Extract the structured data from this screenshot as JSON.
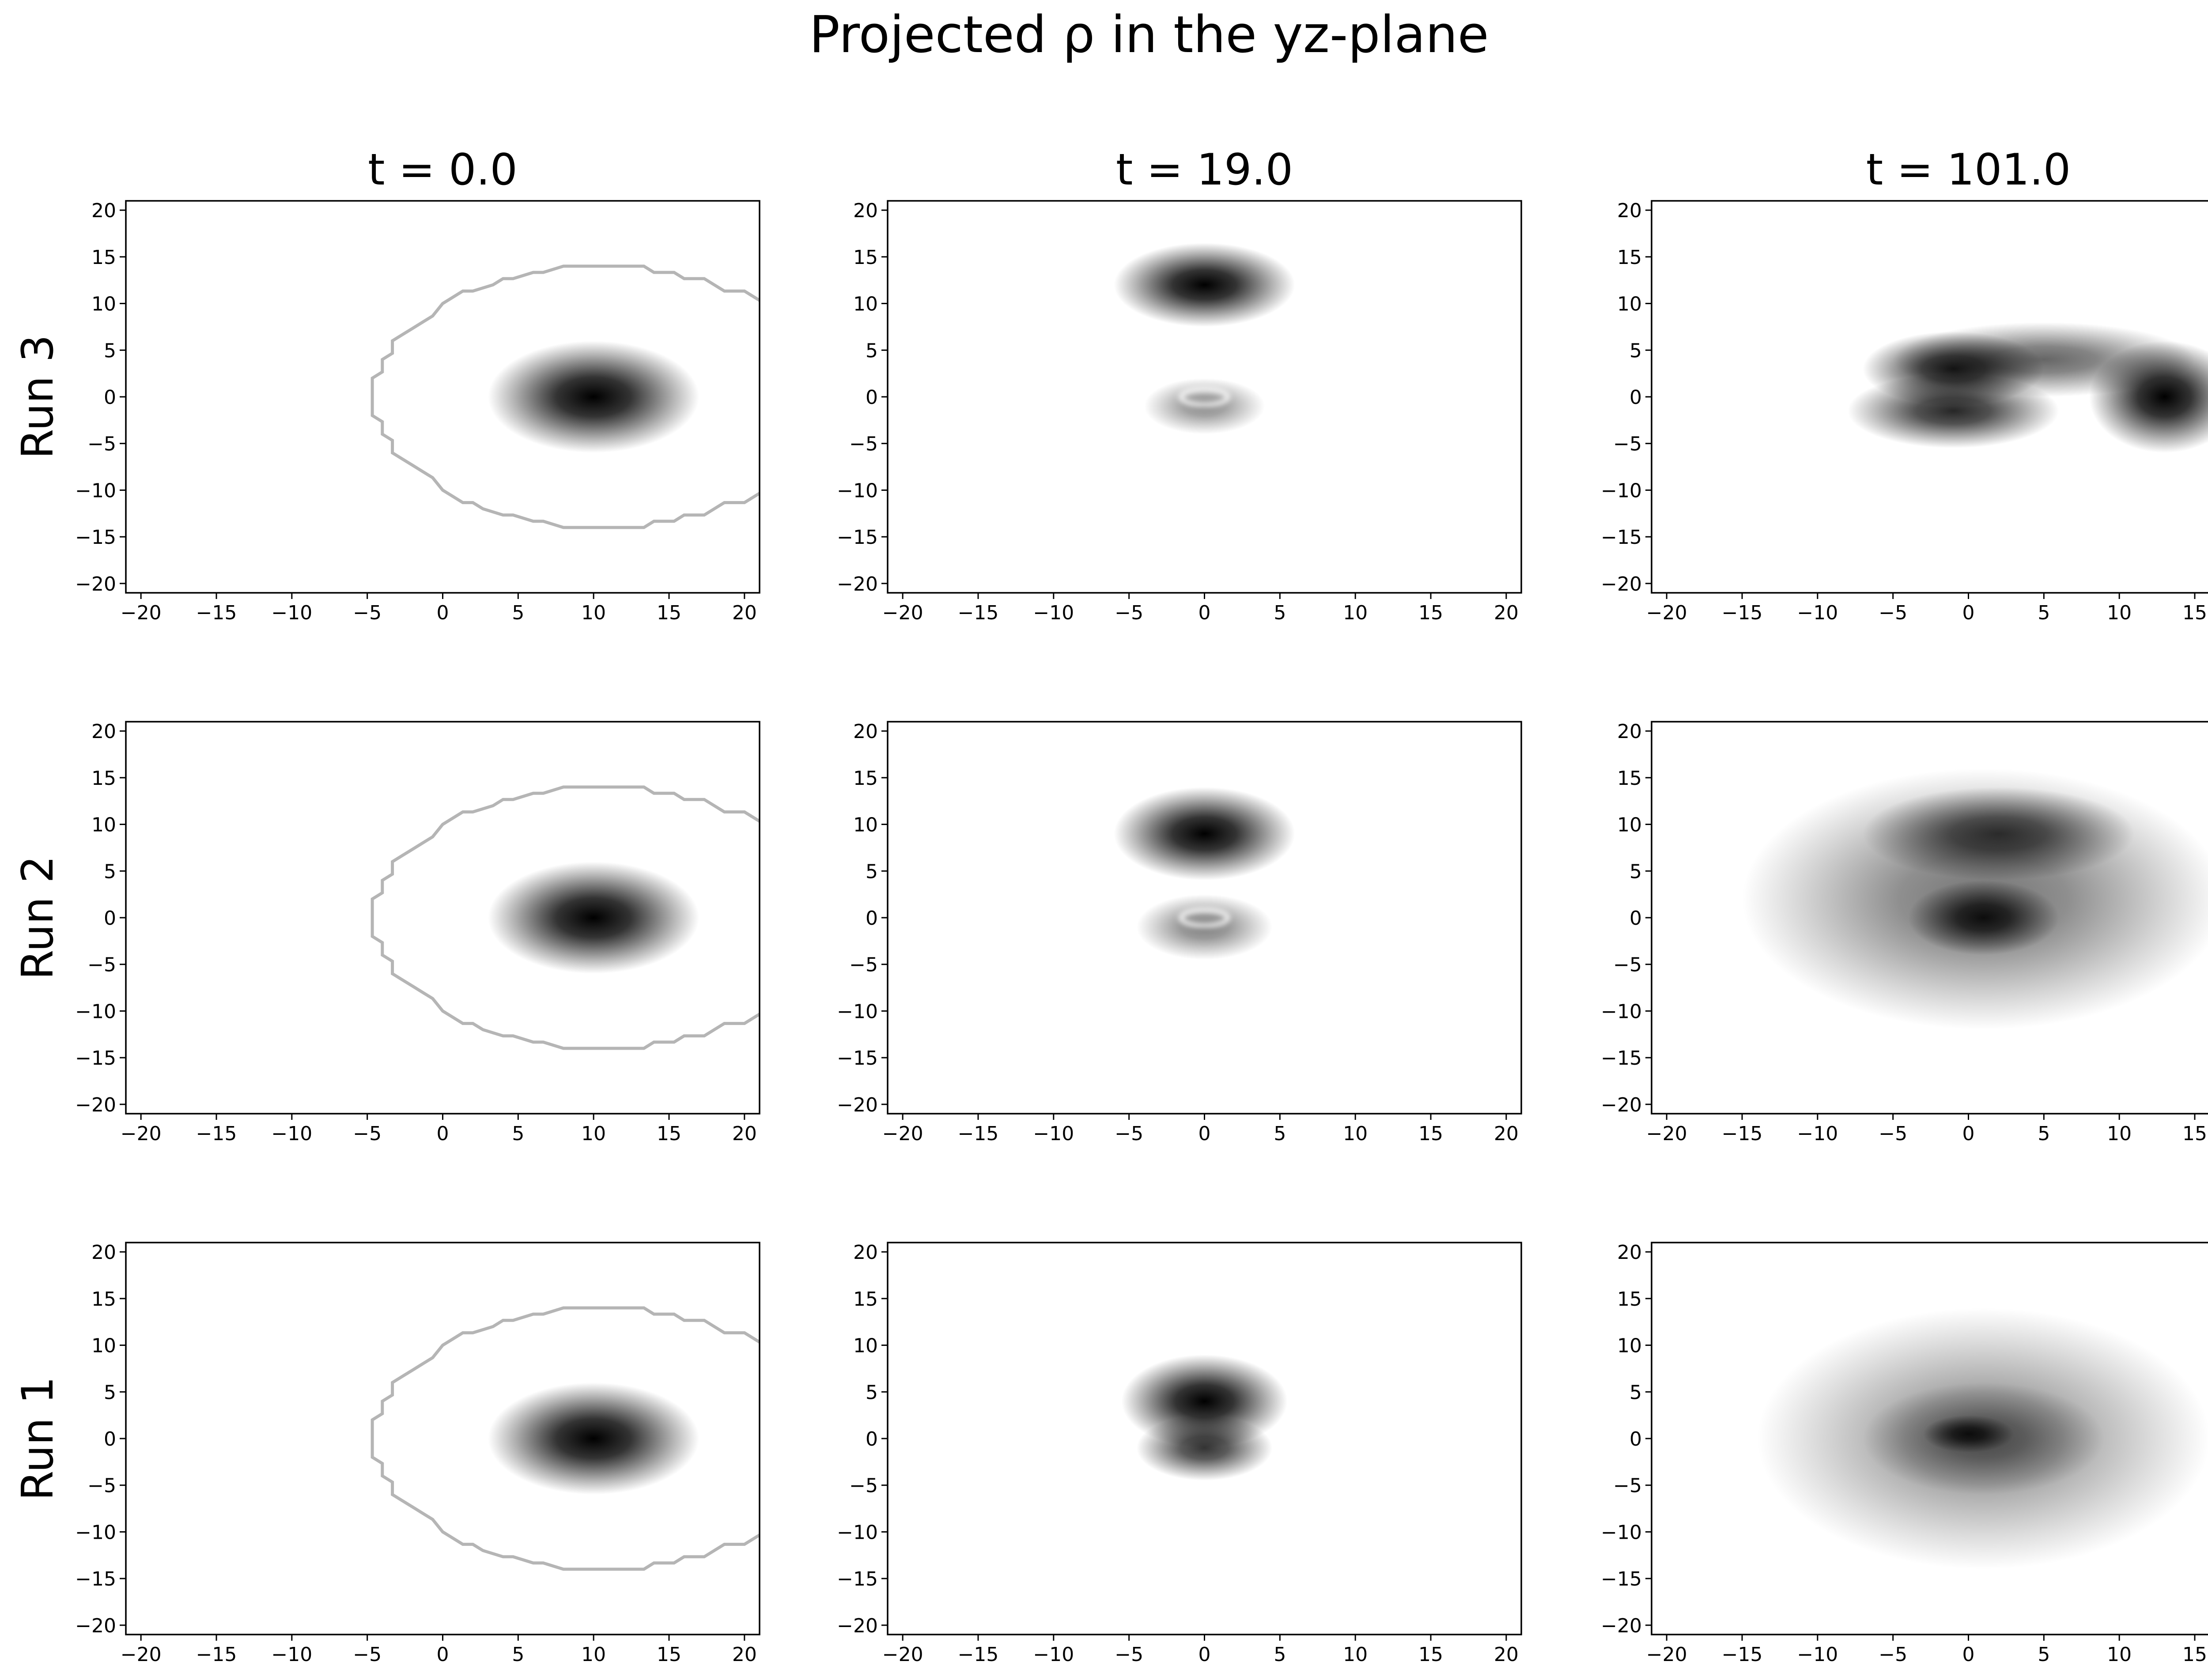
{
  "figure": {
    "title": "Projected ρ in the yz-plane",
    "columns": [
      "t = 0.0",
      "t = 19.0",
      "t = 101.0"
    ],
    "rows": [
      "Run 3",
      "Run 2",
      "Run 1"
    ]
  },
  "chart_data": {
    "type": "heatmap",
    "colormap": "greys",
    "grid": false,
    "xlim": [
      -21,
      21
    ],
    "ylim": [
      -21,
      21
    ],
    "xticks": [
      -20,
      -15,
      -10,
      -5,
      0,
      5,
      10,
      15,
      20
    ],
    "yticks": [
      -20,
      -15,
      -10,
      -5,
      0,
      5,
      10,
      15,
      20
    ],
    "panels": [
      {
        "row": "Run 3",
        "col": "t = 0.0",
        "features": [
          {
            "kind": "blob",
            "x": 10,
            "y": 0,
            "rx": 7,
            "ry": 6,
            "density": 1.0
          }
        ],
        "boundary": {
          "cx": 10.5,
          "cy": 0,
          "rx": 15,
          "ry": 14
        }
      },
      {
        "row": "Run 3",
        "col": "t = 19.0",
        "features": [
          {
            "kind": "blob",
            "x": 0,
            "y": 12,
            "rx": 6,
            "ry": 4.5,
            "density": 1.0
          },
          {
            "kind": "blob",
            "x": 0,
            "y": -1,
            "rx": 4,
            "ry": 3,
            "density": 0.45
          },
          {
            "kind": "ring",
            "x": 0,
            "y": 0,
            "r": 1.2
          }
        ]
      },
      {
        "row": "Run 3",
        "col": "t = 101.0",
        "features": [
          {
            "kind": "blob",
            "x": -1,
            "y": 3,
            "rx": 6,
            "ry": 4,
            "density": 0.9
          },
          {
            "kind": "blob",
            "x": -1,
            "y": -1.5,
            "rx": 7,
            "ry": 4,
            "density": 0.85
          },
          {
            "kind": "blob",
            "x": 13,
            "y": 0,
            "rx": 5,
            "ry": 6,
            "density": 1.0
          },
          {
            "kind": "blob",
            "x": 5,
            "y": 4,
            "rx": 10,
            "ry": 4,
            "density": 0.6
          }
        ]
      },
      {
        "row": "Run 2",
        "col": "t = 0.0",
        "features": [
          {
            "kind": "blob",
            "x": 10,
            "y": 0,
            "rx": 7,
            "ry": 6,
            "density": 1.0
          }
        ],
        "boundary": {
          "cx": 10.5,
          "cy": 0,
          "rx": 15,
          "ry": 14
        }
      },
      {
        "row": "Run 2",
        "col": "t = 19.0",
        "features": [
          {
            "kind": "blob",
            "x": 0,
            "y": 9,
            "rx": 6,
            "ry": 5,
            "density": 1.0
          },
          {
            "kind": "blob",
            "x": 0,
            "y": -1,
            "rx": 4.5,
            "ry": 3.5,
            "density": 0.5
          },
          {
            "kind": "ring",
            "x": 0,
            "y": 0,
            "r": 1.2
          }
        ]
      },
      {
        "row": "Run 2",
        "col": "t = 101.0",
        "features": [
          {
            "kind": "blob",
            "x": 1,
            "y": 2,
            "rx": 16,
            "ry": 14,
            "density": 0.55
          },
          {
            "kind": "blob",
            "x": 2,
            "y": 9,
            "rx": 9,
            "ry": 5,
            "density": 0.75
          },
          {
            "kind": "blob",
            "x": 1,
            "y": 0,
            "rx": 5,
            "ry": 4,
            "density": 0.9
          }
        ]
      },
      {
        "row": "Run 1",
        "col": "t = 0.0",
        "features": [
          {
            "kind": "blob",
            "x": 10,
            "y": 0,
            "rx": 7,
            "ry": 6,
            "density": 1.0
          }
        ],
        "boundary": {
          "cx": 10.5,
          "cy": 0,
          "rx": 15,
          "ry": 14
        }
      },
      {
        "row": "Run 1",
        "col": "t = 19.0",
        "features": [
          {
            "kind": "blob",
            "x": 0,
            "y": 4,
            "rx": 5.5,
            "ry": 5,
            "density": 1.0
          },
          {
            "kind": "blob",
            "x": 0,
            "y": -1,
            "rx": 4.5,
            "ry": 3.5,
            "density": 0.8
          }
        ]
      },
      {
        "row": "Run 1",
        "col": "t = 101.0",
        "features": [
          {
            "kind": "blob",
            "x": 1,
            "y": 0,
            "rx": 15,
            "ry": 14,
            "density": 0.45
          },
          {
            "kind": "blob",
            "x": 1,
            "y": 0,
            "rx": 8,
            "ry": 6,
            "density": 0.5
          },
          {
            "kind": "blob",
            "x": 0,
            "y": 0.5,
            "rx": 3,
            "ry": 2,
            "density": 0.85
          }
        ]
      }
    ]
  }
}
